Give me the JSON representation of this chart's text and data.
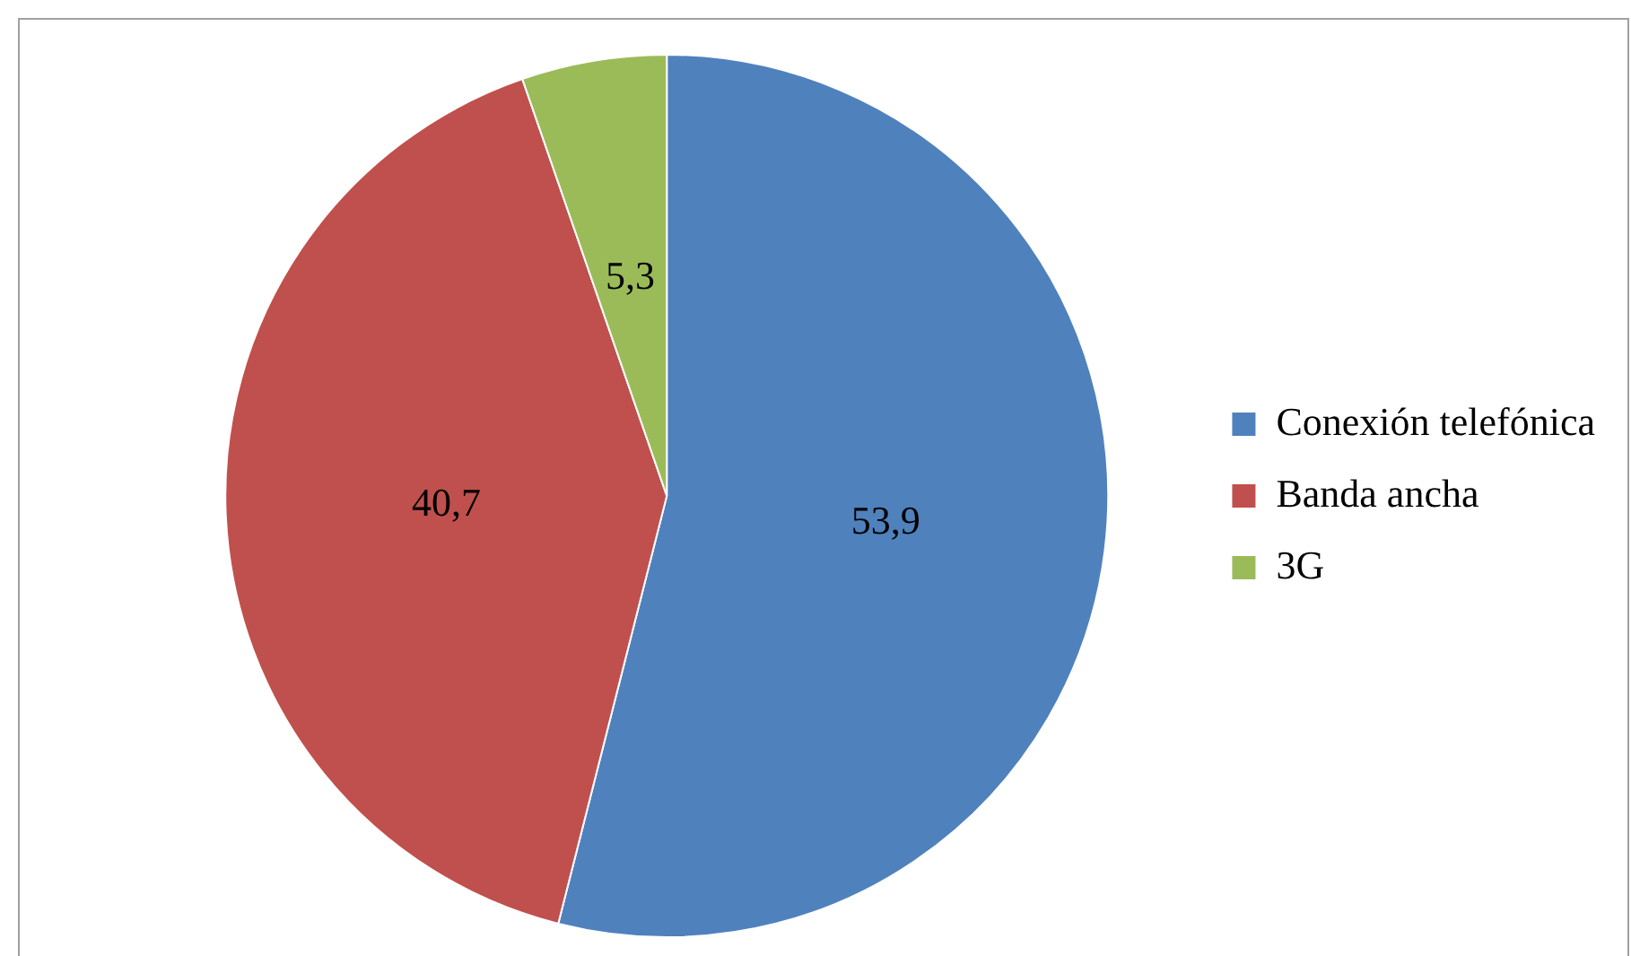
{
  "chart_data": {
    "type": "pie",
    "categories": [
      "Conexión telefónica",
      "Banda ancha",
      "3G"
    ],
    "values": [
      53.9,
      40.7,
      5.3
    ],
    "value_labels": [
      "53,9",
      "40,7",
      "5,3"
    ],
    "colors": [
      "#4f81bd",
      "#c0504d",
      "#9bbb59"
    ],
    "legend": "right"
  }
}
